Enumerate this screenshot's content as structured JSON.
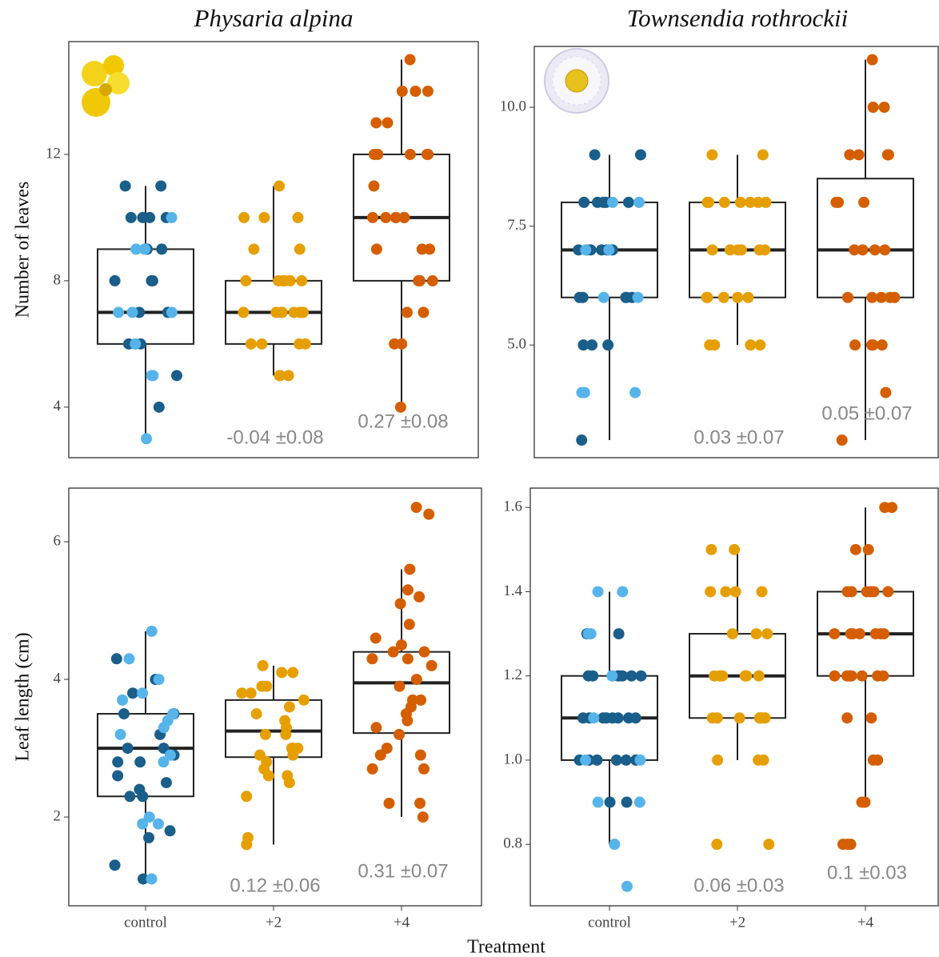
{
  "xlabel": "Treatment",
  "chart_data": [
    {
      "type": "box",
      "title": "Physaria alpina",
      "ylabel": "Number of leaves",
      "ylim": [
        2.4,
        15.57
      ],
      "yticks": [
        4,
        8,
        12
      ],
      "groups": [
        {
          "whislo": 3,
          "q1": 6,
          "med": 7,
          "q3": 9,
          "whishi": 11,
          "points": [
            {
              "color": "#1a5e8a",
              "values": [
                11,
                11,
                10,
                10,
                10,
                10,
                9,
                9,
                9,
                9,
                8,
                8,
                8,
                7,
                7,
                6,
                6,
                6,
                5,
                4
              ]
            },
            {
              "color": "#56b4e9",
              "values": [
                10,
                9,
                9,
                9,
                7,
                7,
                7,
                6,
                5,
                5,
                3
              ]
            }
          ]
        },
        {
          "whislo": 5,
          "q1": 6,
          "med": 7,
          "q3": 8,
          "whishi": 11,
          "points": [
            {
              "color": "#e69f00",
              "values": [
                11,
                10,
                10,
                10,
                9,
                9,
                8,
                8,
                8,
                8,
                8,
                8,
                7,
                7,
                7,
                7,
                7,
                7,
                7,
                6,
                6,
                6,
                6,
                5,
                5,
                5
              ]
            }
          ]
        },
        {
          "whislo": 4,
          "q1": 8,
          "med": 10,
          "q3": 12,
          "whishi": 15,
          "points": [
            {
              "color": "#d55e00",
              "values": [
                15,
                14,
                14,
                14,
                13,
                13,
                12,
                12,
                12,
                12,
                12,
                11,
                10,
                10,
                10,
                10,
                10,
                10,
                9,
                9,
                9,
                8,
                8,
                8,
                7,
                7,
                6,
                6,
                4
              ]
            }
          ]
        }
      ],
      "annotations": [
        null,
        "-0.04 ±0.08",
        "0.27 ±0.08"
      ]
    },
    {
      "type": "box",
      "title": "Townsendia rothrockii",
      "ylim": [
        2.63,
        11.28
      ],
      "yticks": [
        {
          "value": 5,
          "label": "5.0"
        },
        7.5,
        {
          "value": 10,
          "label": "10.0"
        }
      ],
      "groups": [
        {
          "whislo": 3,
          "q1": 6,
          "med": 7,
          "q3": 8,
          "whishi": 9,
          "points": [
            {
              "color": "#1a5e8a",
              "values": [
                9,
                9,
                8,
                8,
                8,
                8,
                8,
                7,
                7,
                7,
                7,
                7,
                7,
                6,
                6,
                6,
                6,
                6,
                5,
                5,
                5,
                3
              ]
            },
            {
              "color": "#56b4e9",
              "values": [
                8,
                8,
                7,
                7,
                6,
                6,
                4,
                4,
                4
              ]
            }
          ]
        },
        {
          "whislo": 5,
          "q1": 6,
          "med": 7,
          "q3": 8,
          "whishi": 9,
          "points": [
            {
              "color": "#e69f00",
              "values": [
                9,
                9,
                8,
                8,
                8,
                8,
                8,
                8,
                8,
                7,
                7,
                7,
                7,
                7,
                7,
                6,
                6,
                6,
                6,
                6,
                5,
                5,
                5,
                5
              ]
            }
          ]
        },
        {
          "whislo": 3,
          "q1": 6,
          "med": 7,
          "q3": 8.5,
          "whishi": 11,
          "points": [
            {
              "color": "#d55e00",
              "values": [
                11,
                10,
                10,
                9,
                9,
                9,
                9,
                8,
                8,
                8,
                7,
                7,
                7,
                7,
                6,
                6,
                6,
                6,
                6,
                5,
                5,
                5,
                5,
                4,
                3
              ]
            }
          ]
        }
      ],
      "annotations": [
        null,
        "0.03 ±0.07",
        "0.05 ±0.07"
      ]
    },
    {
      "type": "box",
      "ylabel": "Leaf length (cm)",
      "categories": [
        "control",
        "+2",
        "+4"
      ],
      "ylim": [
        0.71,
        6.78
      ],
      "yticks": [
        2,
        4,
        6
      ],
      "groups": [
        {
          "whislo": 1.1,
          "q1": 2.3,
          "med": 3.0,
          "q3": 3.5,
          "whishi": 4.7,
          "points": [
            {
              "color": "#1a5e8a",
              "values": [
                4.3,
                4.0,
                3.8,
                3.5,
                3.5,
                3.2,
                3.0,
                3.0,
                2.9,
                2.8,
                2.8,
                2.6,
                2.5,
                2.4,
                2.3,
                2.3,
                1.8,
                1.7,
                1.3,
                1.1
              ]
            },
            {
              "color": "#56b4e9",
              "values": [
                4.7,
                4.3,
                4.0,
                3.8,
                3.7,
                3.5,
                3.4,
                3.3,
                3.2,
                2.9,
                2.8,
                2.0,
                1.9,
                1.9,
                1.1
              ]
            }
          ]
        },
        {
          "whislo": 1.6,
          "q1": 2.87,
          "med": 3.25,
          "q3": 3.7,
          "whishi": 4.2,
          "points": [
            {
              "color": "#e69f00",
              "values": [
                4.1,
                4.2,
                4.1,
                3.9,
                3.9,
                3.8,
                3.8,
                3.7,
                3.6,
                3.5,
                3.4,
                3.3,
                3.2,
                3.2,
                3.0,
                3.0,
                3.0,
                2.9,
                2.9,
                2.8,
                2.7,
                2.6,
                2.6,
                2.5,
                2.3,
                1.7,
                1.6
              ]
            }
          ]
        },
        {
          "whislo": 2.0,
          "q1": 3.22,
          "med": 3.95,
          "q3": 4.4,
          "whishi": 5.6,
          "points": [
            {
              "color": "#d55e00",
              "values": [
                6.5,
                6.4,
                5.6,
                5.3,
                5.2,
                5.1,
                4.8,
                4.6,
                4.5,
                4.4,
                4.4,
                4.3,
                4.3,
                4.2,
                4.0,
                3.9,
                3.7,
                3.7,
                3.6,
                3.5,
                3.4,
                3.3,
                3.2,
                3.0,
                2.9,
                2.9,
                2.7,
                2.7,
                2.2,
                2.2,
                2.0
              ]
            }
          ]
        }
      ],
      "annotations": [
        null,
        "0.12 ±0.06",
        "0.31 ±0.07"
      ]
    },
    {
      "type": "box",
      "categories": [
        "control",
        "+2",
        "+4"
      ],
      "ylim": [
        0.654,
        1.646
      ],
      "yticks": [
        0.8,
        {
          "value": 1,
          "label": "1.0"
        },
        1.2,
        1.4,
        1.6
      ],
      "groups": [
        {
          "whislo": 0.8,
          "q1": 1.0,
          "med": 1.1,
          "q3": 1.2,
          "whishi": 1.4,
          "points": [
            {
              "color": "#1a5e8a",
              "values": [
                1.3,
                1.3,
                1.2,
                1.2,
                1.2,
                1.2,
                1.2,
                1.2,
                1.2,
                1.2,
                1.1,
                1.1,
                1.1,
                1.1,
                1.1,
                1.1,
                1.1,
                1.1,
                1.0,
                1.0,
                1.0,
                1.0,
                1.0,
                1.0,
                0.9,
                0.9
              ]
            },
            {
              "color": "#56b4e9",
              "values": [
                1.4,
                1.4,
                1.3,
                1.3,
                1.2,
                1.1,
                1.0,
                1.0,
                0.9,
                0.9,
                0.8,
                0.7
              ]
            }
          ]
        },
        {
          "whislo": 1.0,
          "q1": 1.1,
          "med": 1.2,
          "q3": 1.3,
          "whishi": 1.5,
          "points": [
            {
              "color": "#e69f00",
              "values": [
                1.5,
                1.5,
                1.4,
                1.4,
                1.4,
                1.4,
                1.3,
                1.3,
                1.3,
                1.2,
                1.2,
                1.2,
                1.2,
                1.2,
                1.2,
                1.2,
                1.1,
                1.1,
                1.1,
                1.1,
                1.1,
                1.1,
                1.1,
                1.0,
                1.0,
                1.0,
                0.8,
                0.8
              ]
            }
          ]
        },
        {
          "whislo": 0.9,
          "q1": 1.2,
          "med": 1.3,
          "q3": 1.4,
          "whishi": 1.6,
          "points": [
            {
              "color": "#d55e00",
              "values": [
                1.6,
                1.6,
                1.5,
                1.5,
                1.4,
                1.4,
                1.4,
                1.4,
                1.4,
                1.4,
                1.3,
                1.3,
                1.3,
                1.3,
                1.3,
                1.3,
                1.3,
                1.2,
                1.2,
                1.2,
                1.2,
                1.2,
                1.2,
                1.2,
                1.1,
                1.1,
                1.0,
                1.0,
                0.9,
                0.9,
                0.8,
                0.8,
                0.8
              ]
            }
          ]
        }
      ],
      "annotations": [
        null,
        "0.06 ±0.03",
        "0.1 ±0.03"
      ]
    }
  ]
}
